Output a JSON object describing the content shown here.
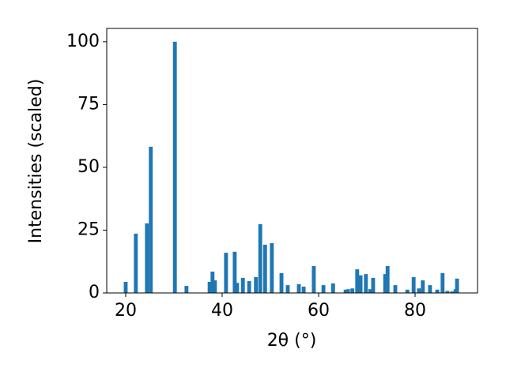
{
  "chart_data": {
    "type": "bar",
    "xlabel": "2θ (°)",
    "ylabel": "Intensities (scaled)",
    "color": "#1f77b4",
    "x": [
      20.0,
      22.1,
      24.4,
      25.2,
      30.2,
      32.6,
      37.4,
      38.0,
      38.5,
      40.8,
      42.6,
      43.1,
      44.3,
      45.6,
      47.0,
      47.9,
      48.9,
      50.3,
      52.3,
      53.6,
      55.9,
      56.9,
      59.0,
      61.0,
      63.0,
      65.6,
      66.1,
      67.0,
      68.0,
      68.7,
      69.8,
      70.7,
      71.3,
      73.8,
      74.3,
      75.9,
      78.4,
      79.7,
      80.8,
      81.6,
      83.1,
      84.6,
      85.7,
      86.7,
      87.7,
      88.4,
      88.7
    ],
    "values": [
      4.4,
      23.6,
      27.7,
      58.2,
      100,
      2.8,
      4.4,
      8.5,
      5.0,
      16.0,
      16.4,
      4.0,
      6.0,
      4.7,
      6.3,
      27.4,
      19.2,
      19.8,
      7.9,
      3.1,
      3.5,
      2.5,
      10.7,
      3.1,
      3.8,
      1.3,
      1.5,
      1.8,
      9.4,
      7.0,
      7.5,
      1.5,
      6.0,
      7.5,
      10.7,
      3.1,
      1.3,
      6.3,
      1.8,
      5.0,
      3.1,
      1.3,
      7.9,
      0.8,
      0.6,
      1.5,
      5.7
    ],
    "xlim": [
      16.07,
      92.95
    ],
    "xticks": [
      20,
      40,
      60,
      80
    ],
    "ylim": [
      0,
      105.3
    ],
    "yticks": [
      0,
      25,
      50,
      75,
      100
    ]
  }
}
